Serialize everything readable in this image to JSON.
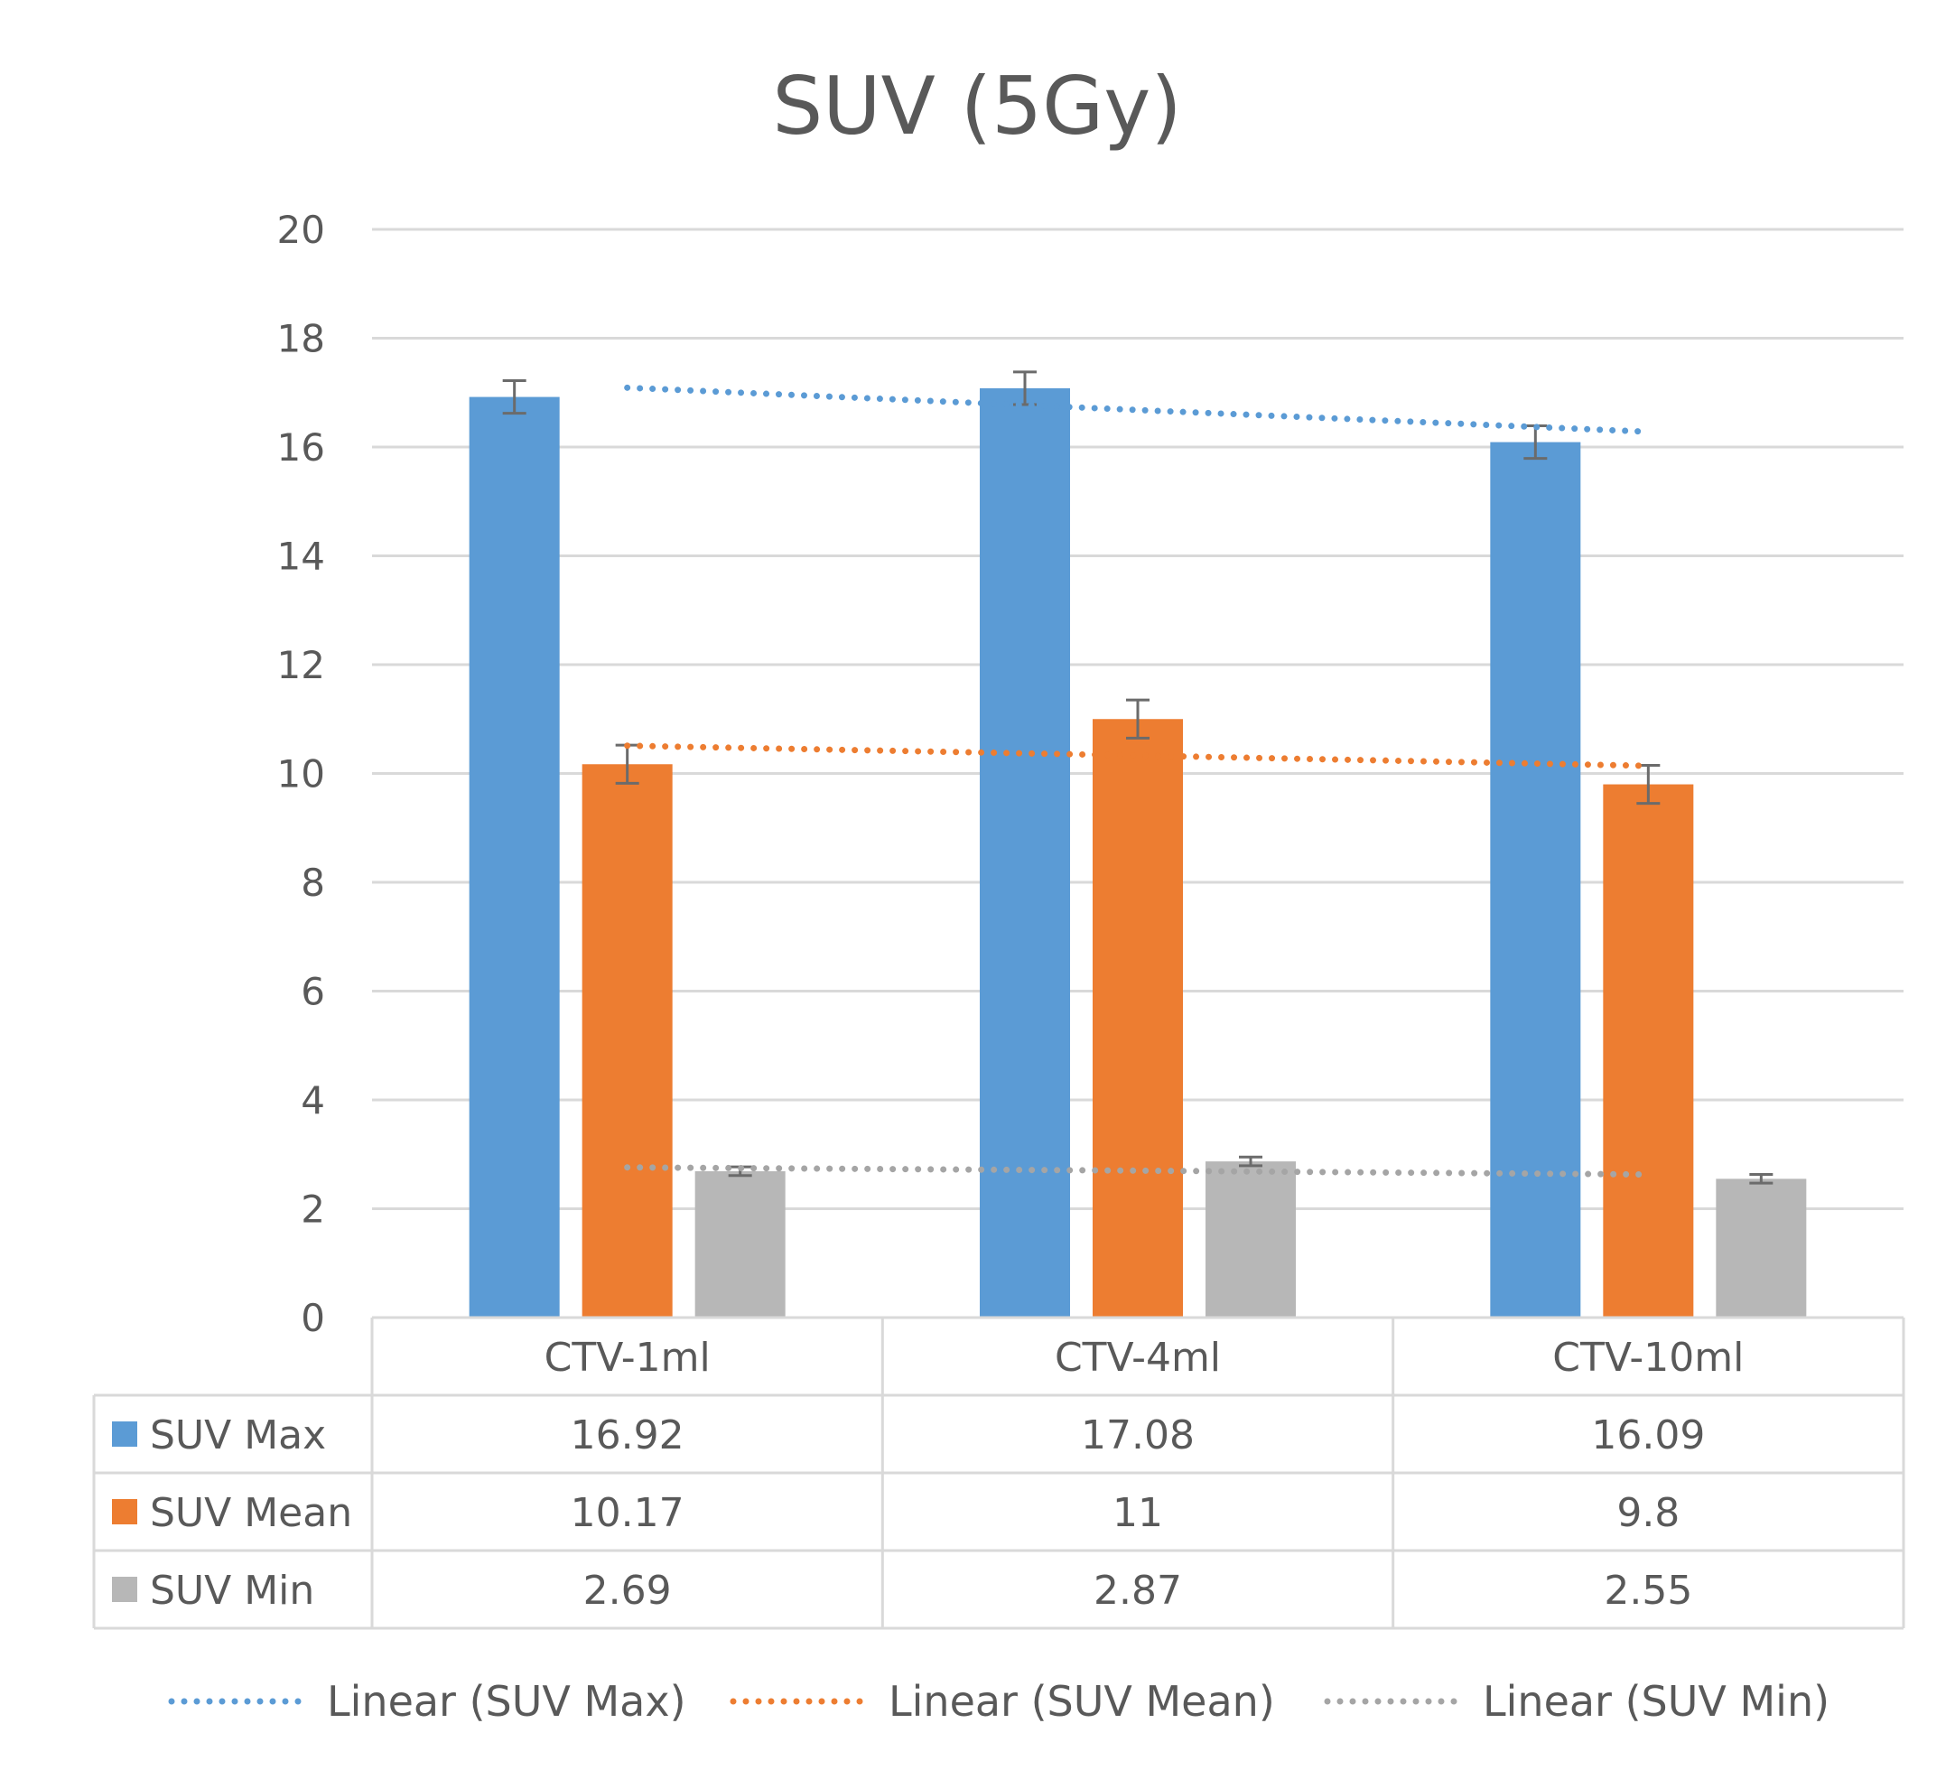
{
  "chart_data": {
    "type": "bar",
    "title": "SUV (5Gy)",
    "categories": [
      "CTV-1ml",
      "CTV-4ml",
      "CTV-10ml"
    ],
    "ylim": [
      0,
      20
    ],
    "yticks": [
      0,
      2,
      4,
      6,
      8,
      10,
      12,
      14,
      16,
      18,
      20
    ],
    "yticks_text": [
      "0",
      "2",
      "4",
      "6",
      "8",
      "10",
      "12",
      "14",
      "16",
      "18",
      "20"
    ],
    "grid": true,
    "series": [
      {
        "name": "SUV Max",
        "color": "#5B9BD5",
        "values": [
          16.92,
          17.08,
          16.09
        ],
        "values_text": [
          "16.92",
          "17.08",
          "16.09"
        ],
        "error": [
          0.3,
          0.3,
          0.3
        ],
        "trend": [
          17.09,
          16.68,
          16.28
        ],
        "trend_label": "Linear (SUV Max)"
      },
      {
        "name": "SUV Mean",
        "color": "#ED7D31",
        "values": [
          10.17,
          11,
          9.8
        ],
        "values_text": [
          "10.17",
          "11",
          "9.8"
        ],
        "error": [
          0.35,
          0.35,
          0.35
        ],
        "trend": [
          10.51,
          10.33,
          10.14
        ],
        "trend_label": "Linear (SUV Mean)"
      },
      {
        "name": "SUV Min",
        "color": "#A5A5A5",
        "bar_color": "#B7B7B7",
        "values": [
          2.69,
          2.87,
          2.55
        ],
        "values_text": [
          "2.69",
          "2.87",
          "2.55"
        ],
        "error": [
          0.08,
          0.08,
          0.08
        ],
        "trend": [
          2.76,
          2.7,
          2.63
        ],
        "trend_label": "Linear (SUV Min)"
      }
    ],
    "legend_position": "bottom"
  }
}
